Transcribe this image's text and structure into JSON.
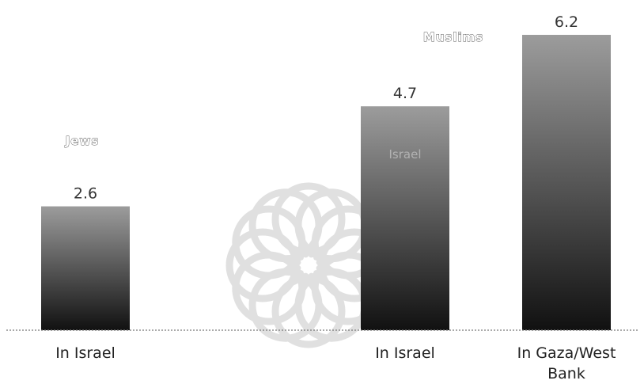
{
  "chart_data": {
    "type": "bar",
    "title": "",
    "xlabel": "",
    "ylabel": "",
    "ylim": [
      0,
      6.2
    ],
    "grid": false,
    "legend": "none",
    "groups": [
      {
        "label": "Jews",
        "categories": [
          "In Israel"
        ]
      },
      {
        "label": "Muslims",
        "categories": [
          "In Israel",
          "In Gaza/West Bank"
        ]
      }
    ],
    "categories": [
      "In Israel",
      "In Israel",
      "In Gaza/West Bank"
    ],
    "values": [
      2.6,
      4.7,
      6.2
    ],
    "value_labels": [
      "2.6",
      "4.7",
      "6.2"
    ],
    "colors": {
      "bar_top": "#9c9c9c",
      "bar_bottom": "#111111",
      "baseline": "#777777",
      "watermark": "#c8c8c8"
    }
  },
  "overlay_labels": {
    "middle_bar_text": "Israel"
  }
}
